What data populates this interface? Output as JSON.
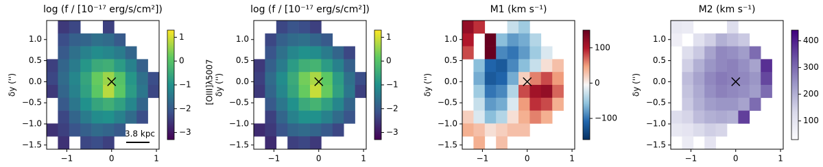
{
  "chart_data": [
    {
      "type": "heatmap",
      "title": "log (f / [10⁻¹⁷ erg/s/cm²])",
      "ylabel": "δy ('')",
      "cmap": "viridis",
      "xlim": [
        -1.45,
        1.06
      ],
      "ylim": [
        -1.6,
        1.45
      ],
      "xticks": [
        {
          "value": -1,
          "label": "−1"
        },
        0,
        1
      ],
      "yticks": [
        {
          "value": -1.5,
          "label": "−1.5"
        },
        {
          "value": -1,
          "label": "−1.0"
        },
        {
          "value": -0.5,
          "label": "−0.5"
        },
        {
          "value": 0,
          "label": "0.0"
        },
        {
          "value": 0.5,
          "label": "0.5"
        },
        {
          "value": 1,
          "label": "1.0"
        }
      ],
      "clim": [
        -3.3,
        1.3
      ],
      "cticks": [
        {
          "value": -3,
          "label": "−3"
        },
        {
          "value": -2,
          "label": "−2"
        },
        {
          "value": -1,
          "label": "−1"
        },
        0,
        1
      ],
      "marker": [
        0,
        0
      ],
      "scalebar": "3.8 kpc",
      "z": [
        [
          null,
          -2.5,
          -2.3,
          null,
          null,
          -2.4,
          null,
          null,
          null,
          null
        ],
        [
          null,
          -2.2,
          -1.9,
          -1.8,
          -1.6,
          -1.7,
          -2.0,
          null,
          null,
          null
        ],
        [
          null,
          -2.0,
          -1.6,
          -1.3,
          -1.1,
          -1.2,
          -1.4,
          -1.8,
          null,
          null
        ],
        [
          -2.4,
          -1.8,
          -1.4,
          -0.9,
          -0.5,
          -0.4,
          -0.8,
          -1.3,
          -1.9,
          null
        ],
        [
          -2.3,
          -1.7,
          -1.2,
          -0.6,
          0.2,
          0.6,
          0.0,
          -0.9,
          -1.6,
          -2.2
        ],
        [
          -2.5,
          -1.8,
          -1.3,
          -0.7,
          0.1,
          0.8,
          0.1,
          -0.8,
          -1.5,
          -2.3
        ],
        [
          null,
          -2.0,
          -1.5,
          -1.0,
          -0.6,
          -0.4,
          -0.7,
          -1.2,
          -1.8,
          null
        ],
        [
          null,
          -2.3,
          -1.8,
          -1.4,
          -1.1,
          -1.0,
          -1.3,
          -1.7,
          -2.2,
          null
        ],
        [
          -2.6,
          -2.4,
          -2.1,
          -1.9,
          -1.7,
          -1.8,
          -2.0,
          null,
          null,
          null
        ],
        [
          null,
          -2.6,
          null,
          -2.3,
          -2.2,
          -2.4,
          null,
          null,
          null,
          null
        ]
      ]
    },
    {
      "type": "heatmap",
      "title": "log (f / [10⁻¹⁷ erg/s/cm²])",
      "ylabel": "δy ('')",
      "side_label": "[OIII]λ5007",
      "cmap": "viridis",
      "xlim": [
        -1.45,
        1.06
      ],
      "ylim": [
        -1.6,
        1.45
      ],
      "xticks": [
        {
          "value": -1,
          "label": "−1"
        },
        0,
        1
      ],
      "yticks": [
        {
          "value": -1.5,
          "label": "−1.5"
        },
        {
          "value": -1,
          "label": "−1.0"
        },
        {
          "value": -0.5,
          "label": "−0.5"
        },
        {
          "value": 0,
          "label": "0.0"
        },
        {
          "value": 0.5,
          "label": "0.5"
        },
        {
          "value": 1,
          "label": "1.0"
        }
      ],
      "clim": [
        -3.3,
        1.3
      ],
      "cticks": [
        {
          "value": -3,
          "label": "−3"
        },
        {
          "value": -2,
          "label": "−2"
        },
        {
          "value": -1,
          "label": "−1"
        },
        0,
        1
      ],
      "marker": [
        0,
        0
      ],
      "z": [
        [
          null,
          null,
          -2.3,
          -2.1,
          -2.2,
          -2.4,
          null,
          null,
          null,
          null
        ],
        [
          null,
          -2.3,
          -1.9,
          -1.7,
          -1.6,
          -1.8,
          -2.0,
          null,
          null,
          null
        ],
        [
          null,
          -2.1,
          -1.6,
          -1.2,
          -1.0,
          -1.1,
          -1.4,
          -1.8,
          -2.3,
          null
        ],
        [
          -2.5,
          -1.9,
          -1.4,
          -0.8,
          -0.4,
          -0.3,
          -0.8,
          -1.3,
          -1.9,
          null
        ],
        [
          -2.4,
          -1.7,
          -1.1,
          -0.5,
          0.3,
          0.7,
          0.1,
          -0.8,
          -1.6,
          -2.2
        ],
        [
          -2.5,
          -1.8,
          -1.2,
          -0.6,
          0.2,
          0.9,
          0.2,
          -0.7,
          -1.5,
          -2.4
        ],
        [
          null,
          -2.0,
          -1.5,
          -1.0,
          -0.5,
          -0.3,
          -0.7,
          -1.2,
          -1.8,
          null
        ],
        [
          null,
          -2.4,
          -1.8,
          -1.3,
          -1.0,
          -1.0,
          -1.3,
          -1.7,
          -2.1,
          null
        ],
        [
          -2.7,
          -2.5,
          -2.1,
          -1.8,
          -1.7,
          -1.8,
          -2.0,
          -2.3,
          null,
          null
        ],
        [
          null,
          -2.7,
          null,
          -2.4,
          -2.3,
          -2.5,
          null,
          null,
          null,
          null
        ]
      ]
    },
    {
      "type": "heatmap",
      "title": "M1 (km s⁻¹)",
      "ylabel": "δy ('')",
      "cmap": "RdBu_r",
      "xlim": [
        -1.45,
        1.06
      ],
      "ylim": [
        -1.6,
        1.45
      ],
      "xticks": [
        {
          "value": -1,
          "label": "−1"
        },
        0,
        1
      ],
      "yticks": [
        {
          "value": -1.5,
          "label": "−1.5"
        },
        {
          "value": -1,
          "label": "−1.0"
        },
        {
          "value": -0.5,
          "label": "−0.5"
        },
        {
          "value": 0,
          "label": "0.0"
        },
        {
          "value": 0.5,
          "label": "0.5"
        },
        {
          "value": 1,
          "label": "1.0"
        }
      ],
      "clim": [
        -160,
        150
      ],
      "cticks": [
        {
          "value": -100,
          "label": "−100"
        },
        0,
        100
      ],
      "marker": [
        0,
        0
      ],
      "z": [
        [
          120,
          90,
          null,
          null,
          -30,
          -50,
          null,
          null,
          null,
          null
        ],
        [
          100,
          null,
          150,
          -60,
          -80,
          -70,
          -40,
          null,
          null,
          null
        ],
        [
          80,
          null,
          150,
          -90,
          -100,
          -80,
          -50,
          -20,
          null,
          null
        ],
        [
          null,
          -60,
          -110,
          -120,
          -90,
          -60,
          -30,
          10,
          30,
          null
        ],
        [
          null,
          -70,
          -120,
          -110,
          -70,
          20,
          60,
          80,
          50,
          null
        ],
        [
          null,
          -50,
          -100,
          -90,
          -40,
          80,
          110,
          120,
          70,
          null
        ],
        [
          null,
          -30,
          -80,
          -70,
          -20,
          50,
          90,
          80,
          40,
          null
        ],
        [
          20,
          -20,
          -60,
          -40,
          10,
          40,
          60,
          40,
          null,
          null
        ],
        [
          40,
          30,
          10,
          20,
          30,
          30,
          null,
          null,
          null,
          null
        ],
        [
          null,
          40,
          null,
          30,
          null,
          null,
          null,
          null,
          null,
          null
        ]
      ]
    },
    {
      "type": "heatmap",
      "title": "M2 (km s⁻¹)",
      "ylabel": "δy ('')",
      "cmap": "Purples",
      "xlim": [
        -1.45,
        1.06
      ],
      "ylim": [
        -1.6,
        1.45
      ],
      "xticks": [
        {
          "value": -1,
          "label": "−1"
        },
        0,
        1
      ],
      "yticks": [
        {
          "value": -1.5,
          "label": "−1.5"
        },
        {
          "value": -1,
          "label": "−1.0"
        },
        {
          "value": -0.5,
          "label": "−0.5"
        },
        {
          "value": 0,
          "label": "0.0"
        },
        {
          "value": 0.5,
          "label": "0.5"
        },
        {
          "value": 1,
          "label": "1.0"
        }
      ],
      "clim": [
        30,
        440
      ],
      "cticks": [
        100,
        200,
        300,
        400
      ],
      "marker": [
        0,
        0
      ],
      "z": [
        [
          90,
          80,
          null,
          null,
          null,
          120,
          null,
          null,
          null,
          null
        ],
        [
          70,
          null,
          110,
          150,
          200,
          180,
          160,
          null,
          null,
          null
        ],
        [
          null,
          120,
          160,
          220,
          260,
          250,
          230,
          300,
          null,
          null
        ],
        [
          null,
          150,
          200,
          240,
          260,
          270,
          250,
          220,
          380,
          null
        ],
        [
          null,
          180,
          220,
          260,
          280,
          270,
          260,
          240,
          350,
          null
        ],
        [
          null,
          170,
          210,
          250,
          270,
          260,
          250,
          230,
          300,
          null
        ],
        [
          null,
          160,
          200,
          230,
          240,
          240,
          220,
          300,
          null,
          null
        ],
        [
          120,
          140,
          180,
          200,
          210,
          200,
          360,
          null,
          null,
          null
        ],
        [
          90,
          100,
          130,
          150,
          140,
          null,
          null,
          null,
          null,
          null
        ],
        [
          null,
          80,
          null,
          100,
          null,
          null,
          null,
          null,
          null,
          null
        ]
      ]
    }
  ]
}
